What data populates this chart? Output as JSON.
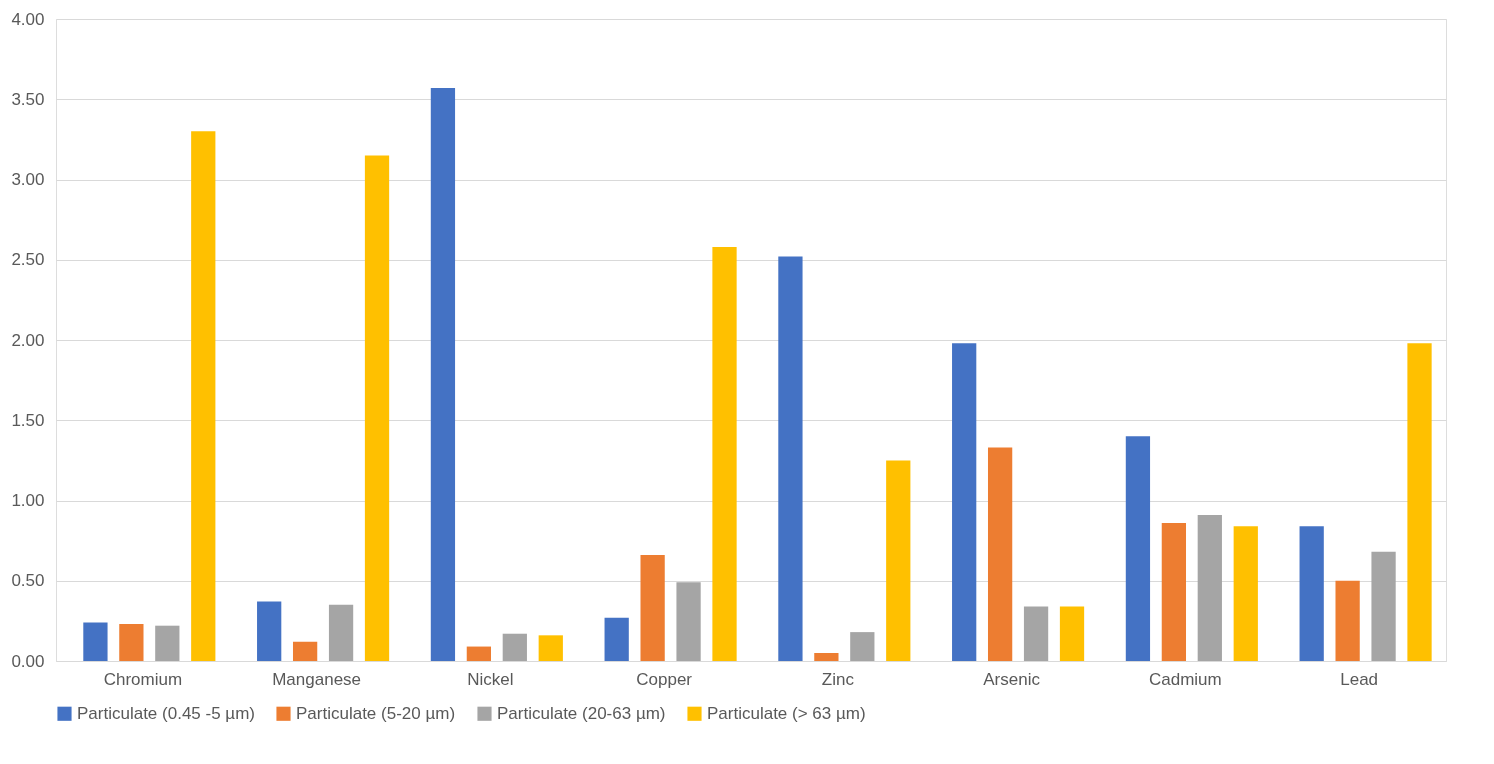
{
  "chart_data": {
    "type": "bar",
    "categories": [
      "Chromium",
      "Manganese",
      "Nickel",
      "Copper",
      "Zinc",
      "Arsenic",
      "Cadmium",
      "Lead"
    ],
    "series": [
      {
        "name": "Particulate (0.45 -5 µm)",
        "color": "#4472c4",
        "values": [
          0.24,
          0.37,
          3.57,
          0.27,
          2.52,
          1.98,
          1.4,
          0.84
        ]
      },
      {
        "name": "Particulate (5-20 µm)",
        "color": "#ed7d31",
        "values": [
          0.23,
          0.12,
          0.09,
          0.66,
          0.05,
          1.33,
          0.86,
          0.5
        ]
      },
      {
        "name": "Particulate (20-63 µm)",
        "color": "#a5a5a5",
        "values": [
          0.22,
          0.35,
          0.17,
          0.49,
          0.18,
          0.34,
          0.91,
          0.68
        ]
      },
      {
        "name": "Particulate (> 63 µm)",
        "color": "#ffc000",
        "values": [
          3.3,
          3.15,
          0.16,
          2.58,
          1.25,
          0.34,
          0.84,
          1.98
        ]
      }
    ],
    "ylim": [
      0,
      4
    ],
    "yticks": [
      {
        "value": 0,
        "label": "0.00"
      },
      {
        "value": 0.5,
        "label": "0.50"
      },
      {
        "value": 1,
        "label": "1.00"
      },
      {
        "value": 1.5,
        "label": "1.50"
      },
      {
        "value": 2,
        "label": "2.00"
      },
      {
        "value": 2.5,
        "label": "2.50"
      },
      {
        "value": 3,
        "label": "3.00"
      },
      {
        "value": 3.5,
        "label": "3.50"
      },
      {
        "value": 4,
        "label": "4.00"
      }
    ],
    "grid": "y",
    "legend": "bottom"
  }
}
